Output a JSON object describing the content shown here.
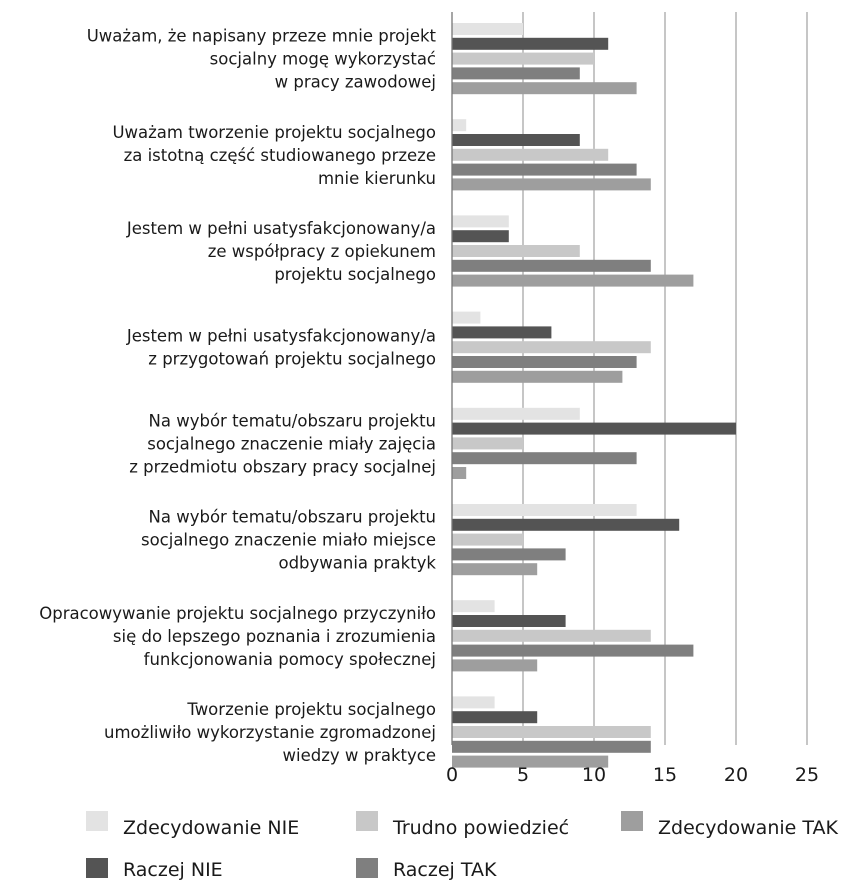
{
  "chart_data": {
    "type": "bar",
    "orientation": "horizontal",
    "title": "",
    "xlabel": "",
    "ylabel": "",
    "xlim": [
      0,
      25
    ],
    "x_ticks": [
      "0",
      "5",
      "10",
      "15",
      "20",
      "25"
    ],
    "grid": "vertical",
    "legend_position": "bottom",
    "categories": [
      [
        "Uważam, że napisany przeze mnie projekt",
        "socjalny mogę wykorzystać",
        "w pracy zawodowej"
      ],
      [
        "Uważam tworzenie projektu socjalnego",
        "za istotną część studiowanego przeze",
        "mnie kierunku"
      ],
      [
        "Jestem w pełni usatysfakcjonowany/a",
        "ze współpracy z opiekunem",
        "projektu socjalnego"
      ],
      [
        "Jestem w pełni usatysfakcjonowany/a",
        "z przygotowań projektu socjalnego"
      ],
      [
        "Na wybór tematu/obszaru projektu",
        "socjalnego znaczenie miały zajęcia",
        "z przedmiotu obszary pracy socjalnej"
      ],
      [
        "Na wybór tematu/obszaru projektu",
        "socjalnego znaczenie miało miejsce",
        "odbywania praktyk"
      ],
      [
        "Opracowywanie projektu socjalnego przyczyniło",
        "się do lepszego poznania i zrozumienia",
        "funkcjonowania pomocy społecznej"
      ],
      [
        "Tworzenie projektu socjalnego",
        "umożliwiło wykorzystanie zgromadzonej",
        "wiedzy w praktyce"
      ]
    ],
    "series": [
      {
        "name": "Zdecydowanie NIE",
        "color": "#e3e3e3",
        "values": [
          5,
          1,
          4,
          2,
          9,
          13,
          3,
          3
        ]
      },
      {
        "name": "Raczej NIE",
        "color": "#545454",
        "values": [
          11,
          9,
          4,
          7,
          20,
          16,
          8,
          6
        ]
      },
      {
        "name": "Trudno powiedzieć",
        "color": "#c8c8c8",
        "values": [
          10,
          11,
          9,
          14,
          5,
          5,
          14,
          14
        ]
      },
      {
        "name": "Raczej TAK",
        "color": "#7f7f7f",
        "values": [
          9,
          13,
          14,
          13,
          13,
          8,
          17,
          14
        ]
      },
      {
        "name": "Zdecydowanie TAK",
        "color": "#9e9e9e",
        "values": [
          13,
          14,
          17,
          12,
          1,
          6,
          6,
          11
        ]
      }
    ],
    "legend_order": [
      "Zdecydowanie NIE",
      "Trudno powiedzieć",
      "Zdecydowanie TAK",
      "Raczej NIE",
      "Raczej TAK"
    ]
  }
}
